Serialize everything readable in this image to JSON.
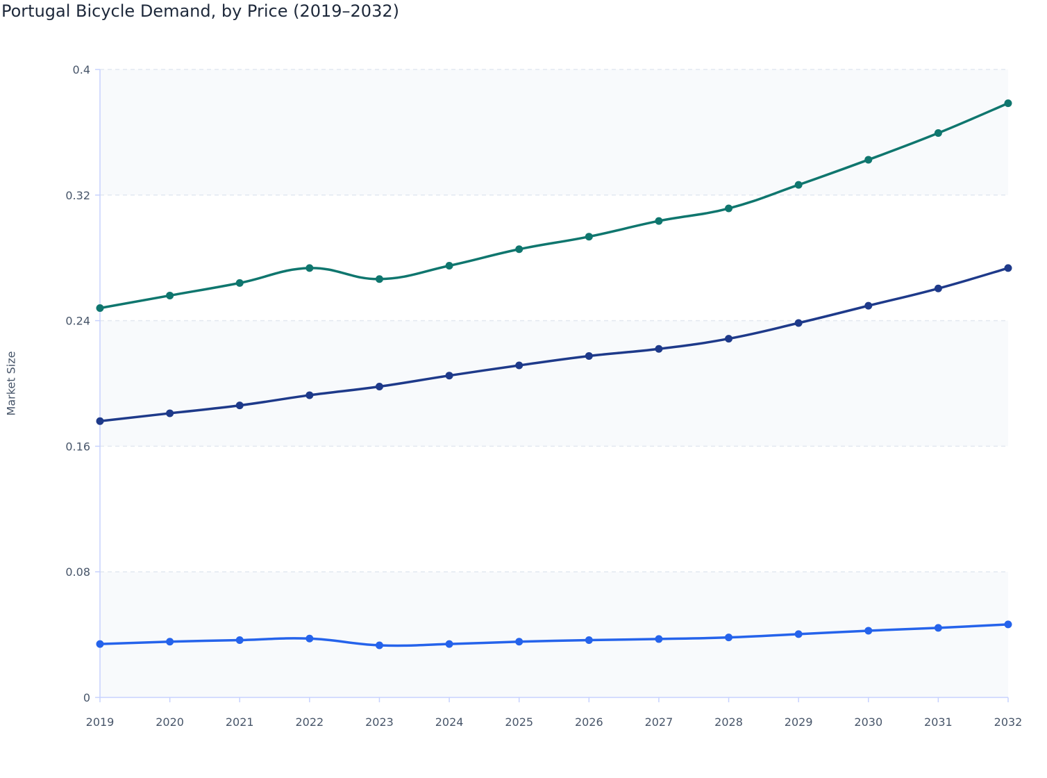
{
  "chart_data": {
    "type": "line",
    "title": "Portugal Bicycle Demand, by Price (2019–2032)",
    "xlabel": "",
    "ylabel": "Market Size",
    "ylim": [
      0,
      0.4
    ],
    "yticks": [
      "0",
      "0.08",
      "0.16",
      "0.24",
      "0.32",
      "0.4"
    ],
    "grid": true,
    "legend": "none",
    "categories": [
      "2019",
      "2020",
      "2021",
      "2022",
      "2023",
      "2024",
      "2025",
      "2026",
      "2027",
      "2028",
      "2029",
      "2030",
      "2031",
      "2032"
    ],
    "series": [
      {
        "color": "#0f766e",
        "values": [
          0.248,
          0.256,
          0.264,
          0.2735,
          0.2665,
          0.275,
          0.2855,
          0.2935,
          0.3035,
          0.3115,
          0.3265,
          0.3425,
          0.3595,
          0.3785
        ]
      },
      {
        "color": "#1e3a8a",
        "values": [
          0.176,
          0.181,
          0.186,
          0.1925,
          0.198,
          0.205,
          0.2115,
          0.2175,
          0.222,
          0.2285,
          0.2385,
          0.2495,
          0.2605,
          0.2735
        ]
      },
      {
        "color": "#2563eb",
        "values": [
          0.034,
          0.0355,
          0.0365,
          0.0375,
          0.0332,
          0.034,
          0.0355,
          0.0365,
          0.0372,
          0.0382,
          0.0403,
          0.0425,
          0.0443,
          0.0465
        ]
      }
    ]
  }
}
